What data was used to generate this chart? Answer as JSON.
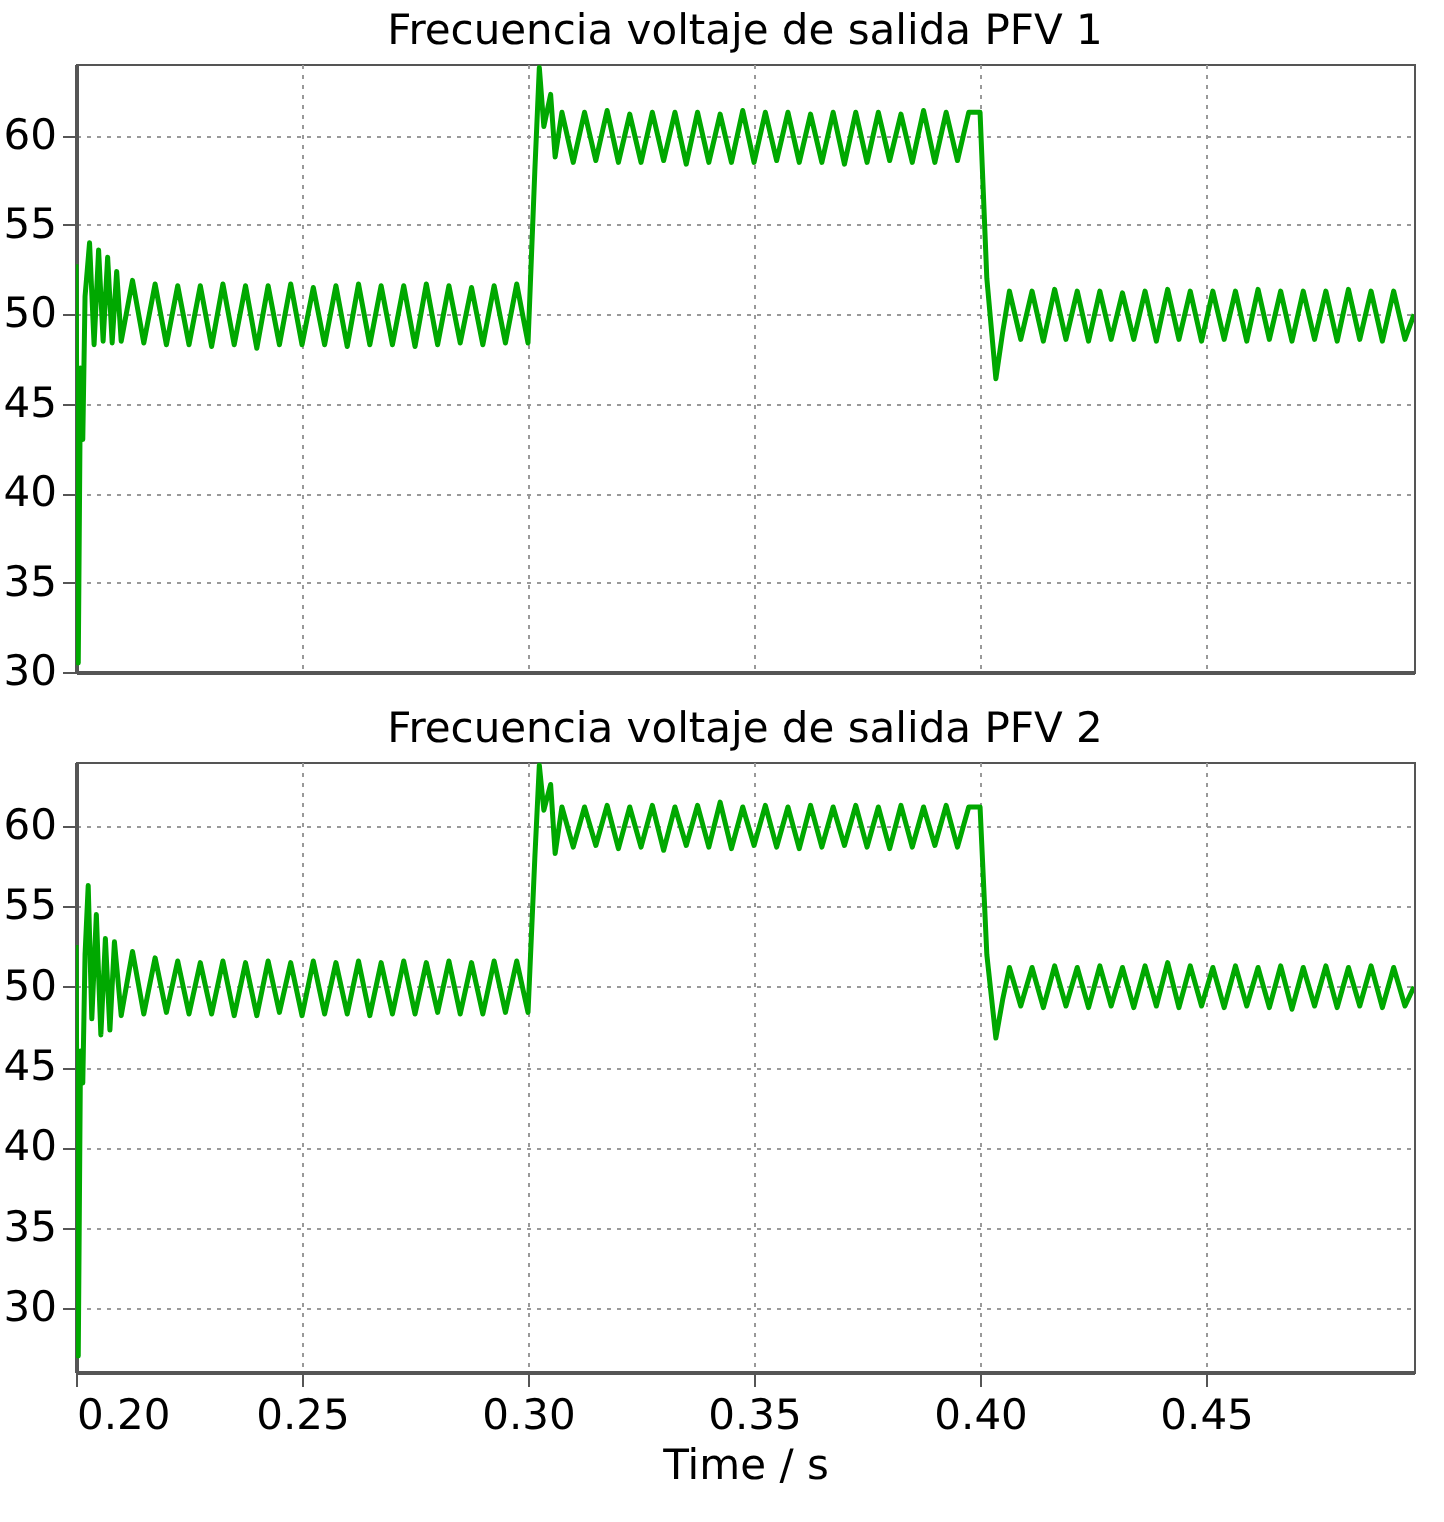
{
  "chart_data": [
    {
      "type": "line",
      "title": "Frecuencia voltaje de salida PFV 1",
      "grid": true,
      "tick_labels": "y",
      "line_style": "solid",
      "xlim": [
        0.2,
        0.496
      ],
      "ylim": [
        30,
        64
      ],
      "xticks": [
        0.2,
        0.25,
        0.3,
        0.35,
        0.4,
        0.45
      ],
      "yticks": [
        30,
        35,
        40,
        45,
        50,
        55,
        60
      ],
      "x": [
        0.2,
        0.2005,
        0.201,
        0.2015,
        0.202,
        0.203,
        0.204,
        0.205,
        0.206,
        0.207,
        0.208,
        0.209,
        0.21,
        0.2125,
        0.215,
        0.2175,
        0.22,
        0.2225,
        0.225,
        0.2275,
        0.23,
        0.2325,
        0.235,
        0.2375,
        0.24,
        0.2425,
        0.245,
        0.2475,
        0.25,
        0.2525,
        0.255,
        0.2575,
        0.26,
        0.2625,
        0.265,
        0.2675,
        0.27,
        0.2725,
        0.275,
        0.2775,
        0.28,
        0.2825,
        0.285,
        0.2875,
        0.29,
        0.2925,
        0.295,
        0.2975,
        0.3,
        0.3015,
        0.3025,
        0.3035,
        0.305,
        0.306,
        0.3075,
        0.31,
        0.3125,
        0.315,
        0.3175,
        0.32,
        0.3225,
        0.325,
        0.3275,
        0.33,
        0.3325,
        0.335,
        0.3375,
        0.34,
        0.3425,
        0.345,
        0.3475,
        0.35,
        0.3525,
        0.355,
        0.3575,
        0.36,
        0.3625,
        0.365,
        0.3675,
        0.37,
        0.3725,
        0.375,
        0.3775,
        0.38,
        0.3825,
        0.385,
        0.3875,
        0.39,
        0.3925,
        0.395,
        0.3975,
        0.4,
        0.4015,
        0.4035,
        0.405,
        0.4065,
        0.409,
        0.4115,
        0.414,
        0.4165,
        0.419,
        0.4215,
        0.424,
        0.4265,
        0.429,
        0.4315,
        0.434,
        0.4365,
        0.439,
        0.4415,
        0.444,
        0.4465,
        0.449,
        0.4515,
        0.454,
        0.4565,
        0.459,
        0.4615,
        0.464,
        0.4665,
        0.469,
        0.4715,
        0.474,
        0.4765,
        0.479,
        0.4815,
        0.484,
        0.4865,
        0.489,
        0.4915,
        0.494,
        0.496
      ],
      "series": [
        {
          "color": "#00a800",
          "values": [
            52.8,
            30.5,
            47,
            43,
            51,
            54,
            48.3,
            53.6,
            48.5,
            53.2,
            48.4,
            52.4,
            48.5,
            51.9,
            48.4,
            51.7,
            48.3,
            51.6,
            48.3,
            51.6,
            48.2,
            51.7,
            48.3,
            51.6,
            48.1,
            51.6,
            48.3,
            51.7,
            48.3,
            51.5,
            48.3,
            51.6,
            48.2,
            51.7,
            48.3,
            51.6,
            48.3,
            51.6,
            48.2,
            51.7,
            48.3,
            51.6,
            48.4,
            51.5,
            48.3,
            51.6,
            48.4,
            51.7,
            48.4,
            58,
            63.8,
            60.5,
            62.3,
            58.8,
            61.3,
            58.5,
            61.3,
            58.6,
            61.4,
            58.5,
            61.2,
            58.5,
            61.3,
            58.6,
            61.3,
            58.4,
            61.3,
            58.5,
            61.2,
            58.5,
            61.4,
            58.5,
            61.3,
            58.6,
            61.3,
            58.5,
            61.2,
            58.5,
            61.3,
            58.4,
            61.3,
            58.5,
            61.3,
            58.6,
            61.2,
            58.5,
            61.4,
            58.5,
            61.3,
            58.6,
            61.3,
            61.3,
            52,
            46.4,
            49,
            51.3,
            48.6,
            51.3,
            48.5,
            51.4,
            48.6,
            51.3,
            48.5,
            51.3,
            48.6,
            51.2,
            48.6,
            51.3,
            48.5,
            51.4,
            48.6,
            51.3,
            48.5,
            51.3,
            48.6,
            51.3,
            48.5,
            51.4,
            48.6,
            51.3,
            48.5,
            51.3,
            48.6,
            51.3,
            48.5,
            51.4,
            48.6,
            51.3,
            48.5,
            51.3,
            48.6,
            50
          ]
        }
      ]
    },
    {
      "type": "line",
      "title": "Frecuencia voltaje de salida PFV 2",
      "xlabel": "Time / s",
      "grid": true,
      "line_style": "solid",
      "xlim": [
        0.2,
        0.496
      ],
      "ylim": [
        26,
        64
      ],
      "xticks": [
        {
          "value": 0.2,
          "label": "0.20"
        },
        {
          "value": 0.25,
          "label": "0.25"
        },
        {
          "value": 0.3,
          "label": "0.30"
        },
        {
          "value": 0.35,
          "label": "0.35"
        },
        {
          "value": 0.4,
          "label": "0.40"
        },
        {
          "value": 0.45,
          "label": "0.45"
        }
      ],
      "yticks": [
        30,
        35,
        40,
        45,
        50,
        55,
        60
      ],
      "x": [
        0.2,
        0.2005,
        0.201,
        0.2015,
        0.202,
        0.2027,
        0.2035,
        0.2045,
        0.2055,
        0.2065,
        0.2075,
        0.2085,
        0.21,
        0.2125,
        0.215,
        0.2175,
        0.22,
        0.2225,
        0.225,
        0.2275,
        0.23,
        0.2325,
        0.235,
        0.2375,
        0.24,
        0.2425,
        0.245,
        0.2475,
        0.25,
        0.2525,
        0.255,
        0.2575,
        0.26,
        0.2625,
        0.265,
        0.2675,
        0.27,
        0.2725,
        0.275,
        0.2775,
        0.28,
        0.2825,
        0.285,
        0.2875,
        0.29,
        0.2925,
        0.295,
        0.2975,
        0.3,
        0.3015,
        0.3025,
        0.3035,
        0.305,
        0.306,
        0.3075,
        0.31,
        0.3125,
        0.315,
        0.3175,
        0.32,
        0.3225,
        0.325,
        0.3275,
        0.33,
        0.3325,
        0.335,
        0.3375,
        0.34,
        0.3425,
        0.345,
        0.3475,
        0.35,
        0.3525,
        0.355,
        0.3575,
        0.36,
        0.3625,
        0.365,
        0.3675,
        0.37,
        0.3725,
        0.375,
        0.3775,
        0.38,
        0.3825,
        0.385,
        0.3875,
        0.39,
        0.3925,
        0.395,
        0.3975,
        0.4,
        0.4015,
        0.4035,
        0.405,
        0.4065,
        0.409,
        0.4115,
        0.414,
        0.4165,
        0.419,
        0.4215,
        0.424,
        0.4265,
        0.429,
        0.4315,
        0.434,
        0.4365,
        0.439,
        0.4415,
        0.444,
        0.4465,
        0.449,
        0.4515,
        0.454,
        0.4565,
        0.459,
        0.4615,
        0.464,
        0.4665,
        0.469,
        0.4715,
        0.474,
        0.4765,
        0.479,
        0.4815,
        0.484,
        0.4865,
        0.489,
        0.4915,
        0.494,
        0.496
      ],
      "series": [
        {
          "color": "#00a800",
          "values": [
            52.6,
            27,
            46,
            44,
            52,
            56.3,
            48,
            54.5,
            47,
            53,
            47.3,
            52.8,
            48.2,
            52.2,
            48.3,
            51.8,
            48.4,
            51.6,
            48.3,
            51.5,
            48.3,
            51.6,
            48.2,
            51.5,
            48.2,
            51.6,
            48.4,
            51.5,
            48.2,
            51.6,
            48.3,
            51.5,
            48.3,
            51.6,
            48.2,
            51.5,
            48.3,
            51.6,
            48.3,
            51.5,
            48.4,
            51.6,
            48.3,
            51.5,
            48.3,
            51.6,
            48.4,
            51.6,
            48.4,
            58,
            63.8,
            61,
            62.6,
            58.3,
            61.2,
            58.7,
            61.2,
            58.8,
            61.3,
            58.6,
            61.2,
            58.7,
            61.3,
            58.5,
            61.2,
            58.8,
            61.3,
            58.7,
            61.5,
            58.6,
            61.2,
            58.8,
            61.3,
            58.7,
            61.2,
            58.6,
            61.3,
            58.7,
            61.2,
            58.8,
            61.3,
            58.7,
            61.2,
            58.6,
            61.3,
            58.7,
            61.2,
            58.8,
            61.3,
            58.7,
            61.2,
            61.2,
            52,
            46.8,
            49.2,
            51.2,
            48.8,
            51.2,
            48.7,
            51.3,
            48.8,
            51.2,
            48.7,
            51.3,
            48.8,
            51.2,
            48.7,
            51.3,
            48.8,
            51.5,
            48.7,
            51.3,
            48.8,
            51.2,
            48.7,
            51.3,
            48.8,
            51.2,
            48.7,
            51.3,
            48.6,
            51.2,
            48.8,
            51.3,
            48.7,
            51.2,
            48.8,
            51.3,
            48.7,
            51.2,
            48.8,
            50
          ]
        }
      ]
    }
  ]
}
